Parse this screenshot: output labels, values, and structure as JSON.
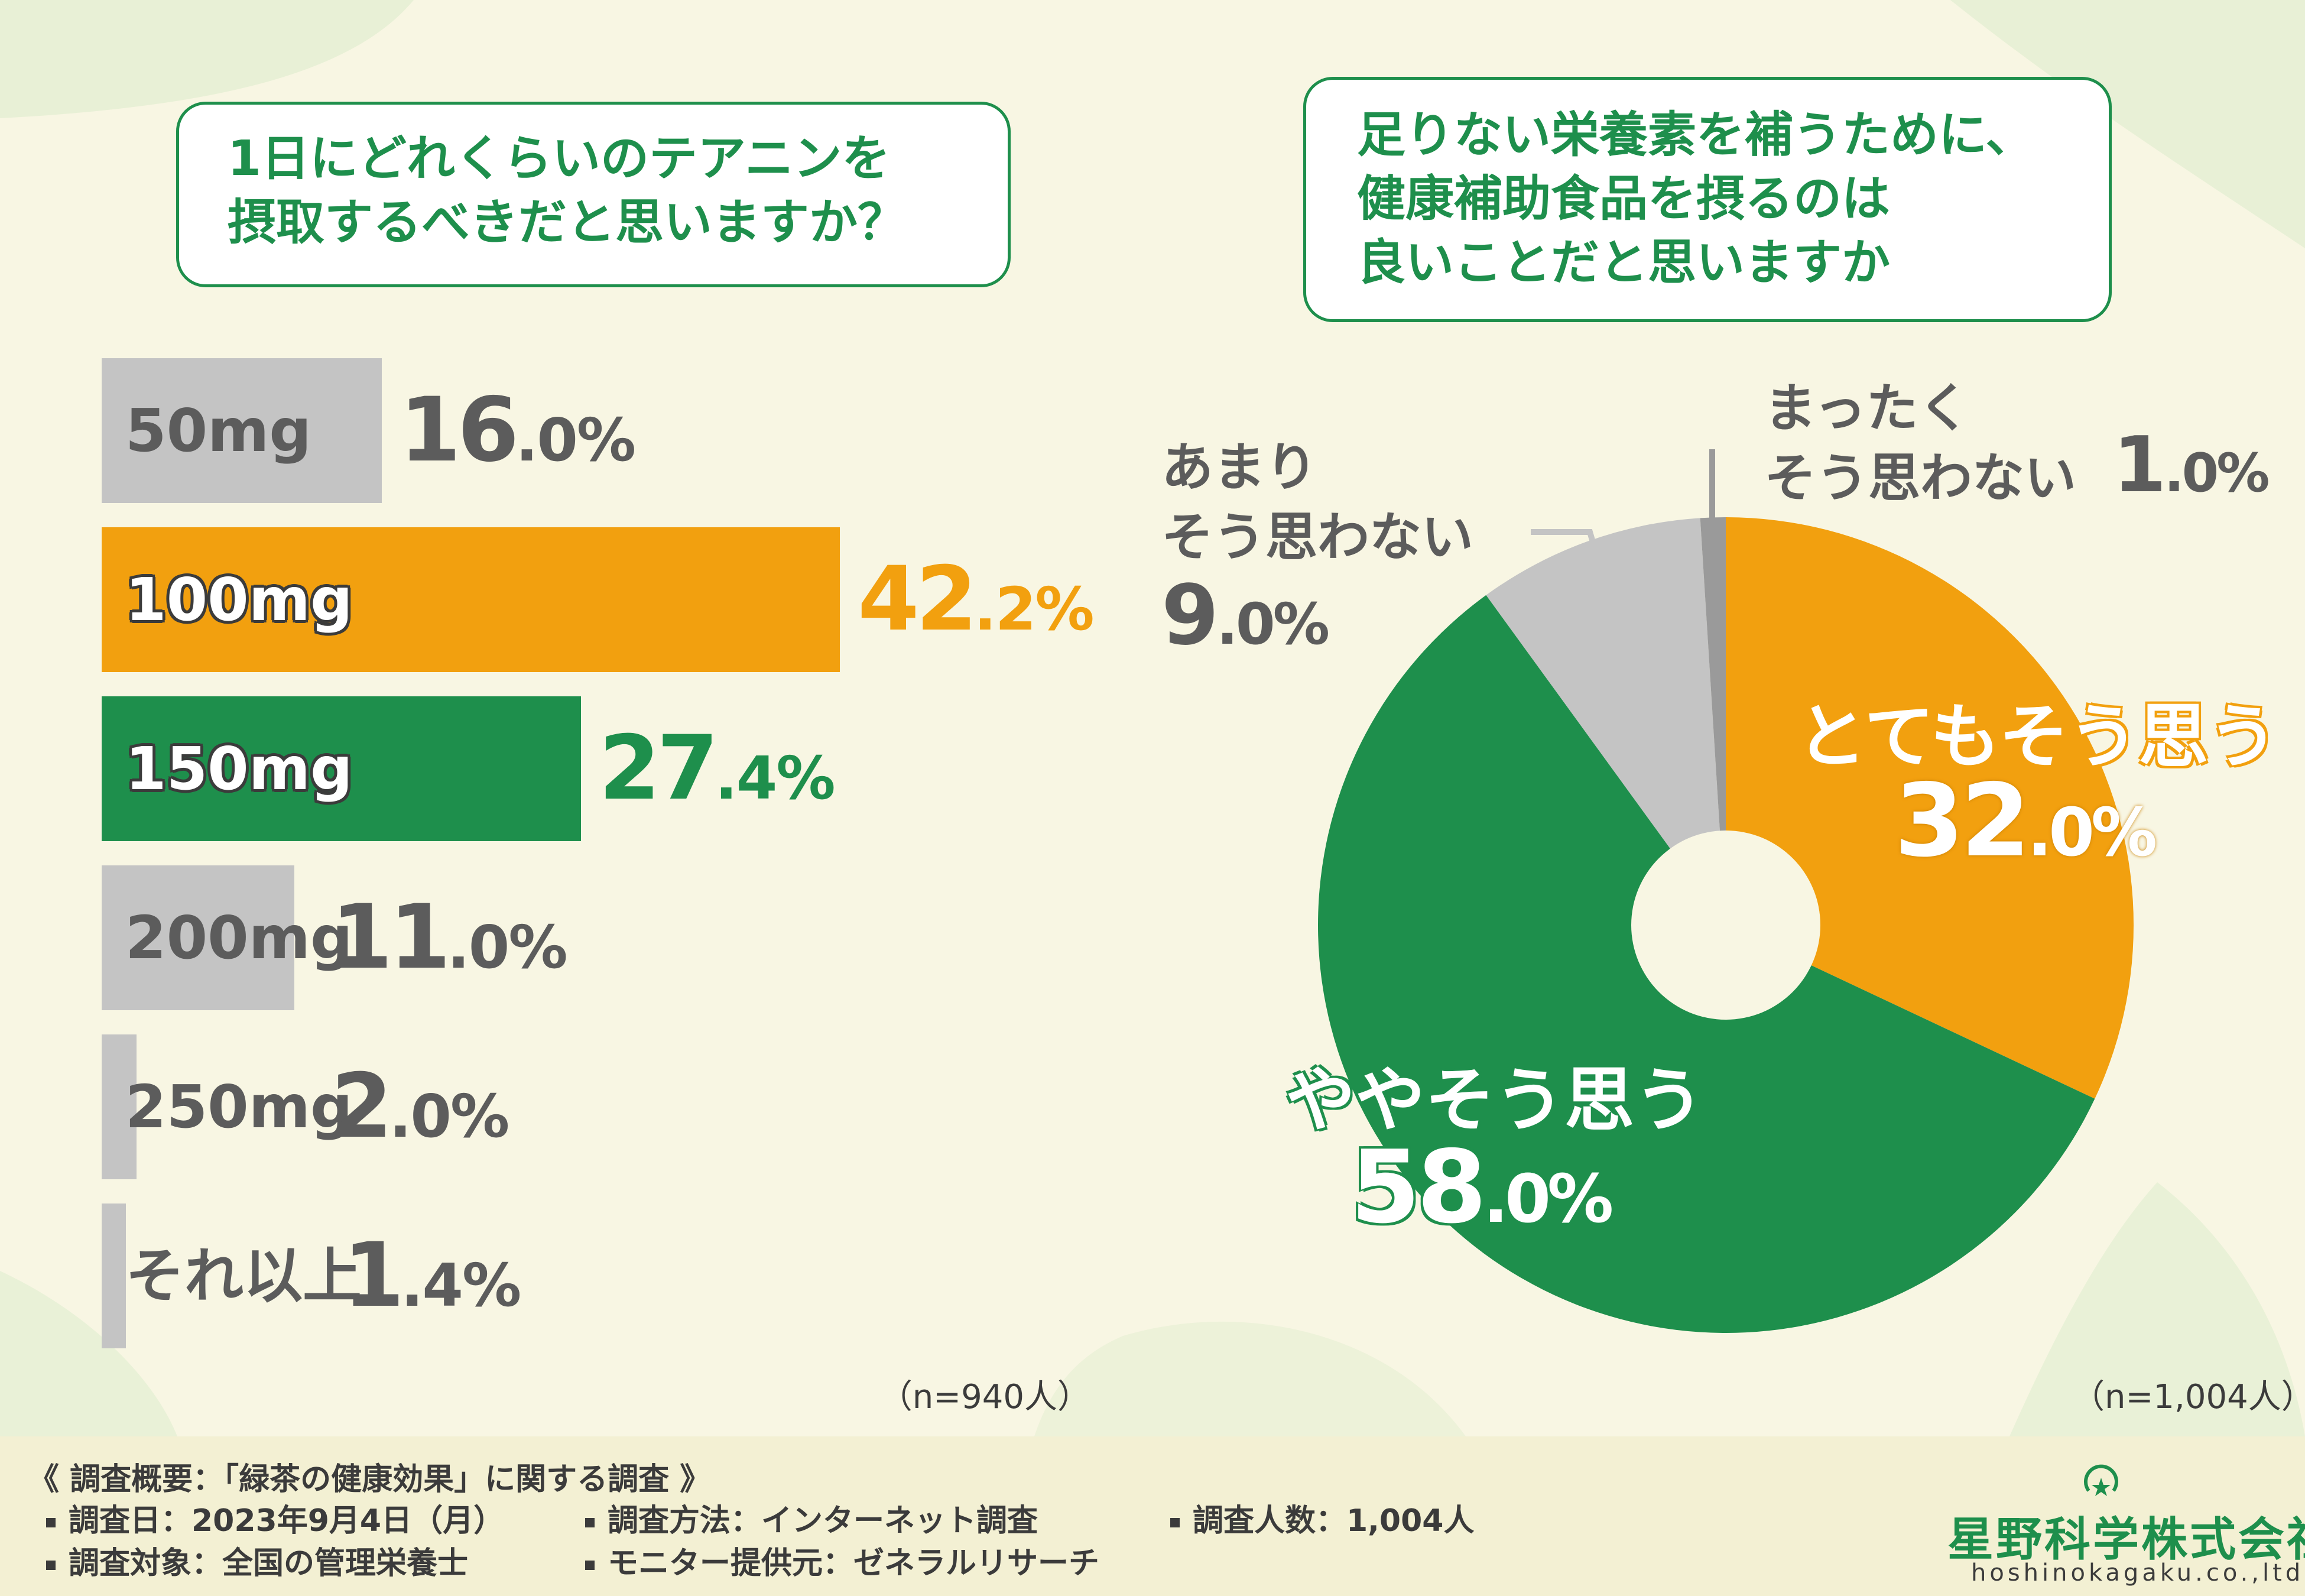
{
  "left_question": {
    "line1": "1日にどれくらいのテアニンを",
    "line2": "摂取するべきだと思いますか？"
  },
  "right_question": {
    "line1": "足りない栄養素を補うために、",
    "line2": "健康補助食品を摂るのは",
    "line3": "良いことだと思いますか"
  },
  "chart_data": [
    {
      "type": "bar",
      "orientation": "horizontal",
      "title": "1日にどれくらいのテアニンを摂取するべきだと思いますか？",
      "categories": [
        "50mg",
        "100mg",
        "150mg",
        "200mg",
        "250mg",
        "それ以上"
      ],
      "values": [
        16.0,
        42.2,
        27.4,
        11.0,
        2.0,
        1.4
      ],
      "value_labels": [
        {
          "int": "16",
          "dec": ".0%"
        },
        {
          "int": "42",
          "dec": ".2%"
        },
        {
          "int": "27",
          "dec": ".4%"
        },
        {
          "int": "11",
          "dec": ".0%"
        },
        {
          "int": "2",
          "dec": ".0%"
        },
        {
          "int": "1",
          "dec": ".4%"
        }
      ],
      "unit": "%",
      "n_label": "（n=940人）",
      "colors": [
        "#c4c4c4",
        "#f2a00f",
        "#1e8f4c",
        "#c4c4c4",
        "#c4c4c4",
        "#c4c4c4"
      ]
    },
    {
      "type": "pie",
      "title": "足りない栄養素を補うために、健康補助食品を摂るのは良いことだと思いますか",
      "donut": true,
      "slices": [
        {
          "name": "とてもそう思う",
          "value": 32.0,
          "int": "32",
          "dec": ".0%",
          "color": "#f2a00f"
        },
        {
          "name": "ややそう思う",
          "value": 58.0,
          "int": "58",
          "dec": ".0%",
          "color": "#1e8f4c"
        },
        {
          "name": "あまりそう思わない",
          "value": 9.0,
          "int": "9",
          "dec": ".0%",
          "color": "#c4c4c4"
        },
        {
          "name": "まったくそう思わない",
          "value": 1.0,
          "int": "1",
          "dec": ".0%",
          "color": "#9a9a9a"
        }
      ],
      "label_text": {
        "slice0": "とてもそう思う",
        "slice1": "ややそう思う",
        "slice2_line1": "あまり",
        "slice2_line2": "そう思わない",
        "slice3_line1": "まったく",
        "slice3_line2": "そう思わない"
      },
      "unit": "%",
      "n_label": "（n=1,004人）"
    }
  ],
  "footer": {
    "overview": "《 調査概要：「緑茶の健康効果」に関する調査 》",
    "date": "調査日：2023年9月4日（月）",
    "method": "調査方法：インターネット調査",
    "count": "調査人数：1,004人",
    "target": "調査対象：全国の管理栄養士",
    "provider": "モニター提供元：ゼネラルリサーチ"
  },
  "logo": {
    "name": "星野科学株式会社",
    "url": "hoshinokagaku.co.,ltd."
  },
  "colors": {
    "green": "#1e8f4c",
    "orange": "#f2a00f",
    "gray": "#c4c4c4",
    "dark_gray": "#9a9a9a",
    "background": "#f8f6e3"
  }
}
